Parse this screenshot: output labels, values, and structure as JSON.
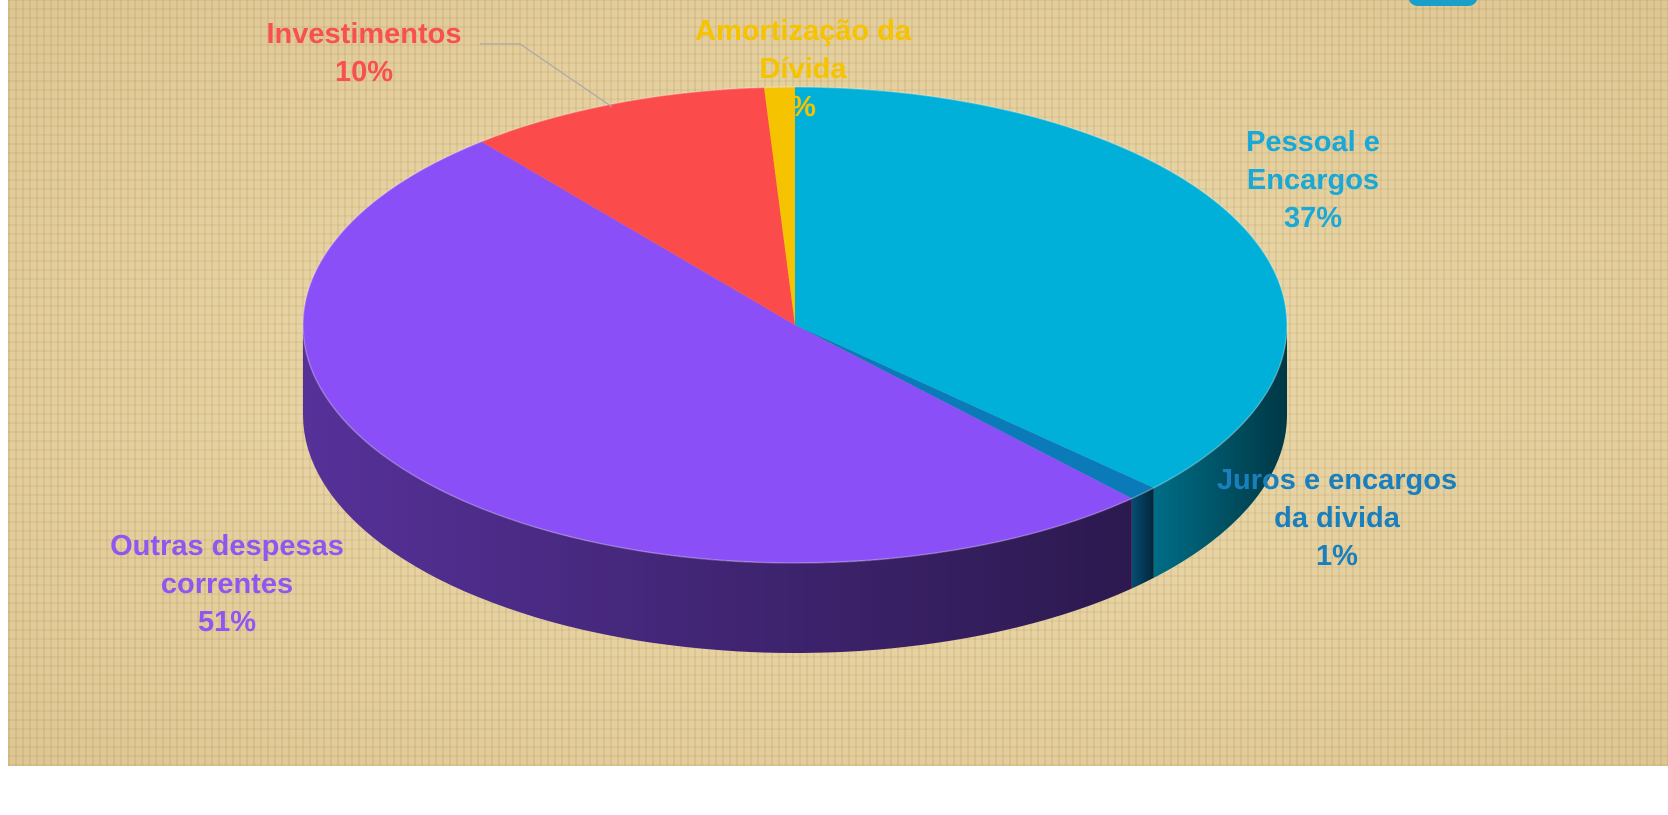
{
  "chart_data": {
    "type": "pie",
    "style": "3d",
    "slices": [
      {
        "label_lines": [
          "Pessoal e",
          "Encargos"
        ],
        "percent_text": "37%",
        "value": 37,
        "color": "#00b0d8"
      },
      {
        "label_lines": [
          "Juros e encargos",
          "da divida"
        ],
        "percent_text": "1%",
        "value": 1,
        "color": "#0a7ab8"
      },
      {
        "label_lines": [
          "Outras despesas",
          "correntes"
        ],
        "percent_text": "51%",
        "value": 51,
        "color": "#8a4ff7"
      },
      {
        "label_lines": [
          "Investimentos"
        ],
        "percent_text": "10%",
        "value": 10,
        "color": "#fb4b4b"
      },
      {
        "label_lines": [
          "Amortização da",
          "Dívida"
        ],
        "percent_text": "%",
        "value": 1,
        "color": "#f5c300"
      }
    ],
    "legend": "none"
  }
}
